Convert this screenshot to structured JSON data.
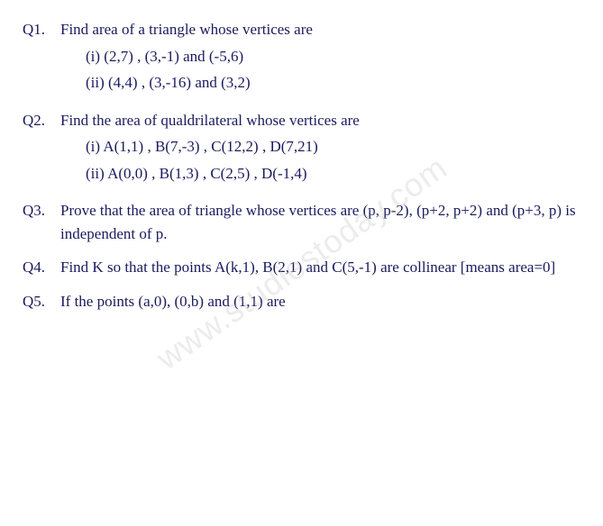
{
  "text_color": "#1a1a5e",
  "background_color": "#ffffff",
  "font_family": "cursive",
  "watermark": "www.studiestoday.com",
  "questions": [
    {
      "num": "Q1.",
      "text": "Find area of a triangle whose vertices are",
      "sub": [
        "(i) (2,7) , (3,-1) and (-5,6)",
        "(ii) (4,4) , (3,-16) and (3,2)"
      ]
    },
    {
      "num": "Q2.",
      "text": "Find the area of qualdrilateral whose vertices are",
      "sub": [
        "(i) A(1,1) , B(7,-3) , C(12,2) , D(7,21)",
        "(ii) A(0,0) , B(1,3) , C(2,5) , D(-1,4)"
      ]
    },
    {
      "num": "Q3.",
      "text": "Prove that the area of triangle whose vertices are (p, p-2), (p+2, p+2) and (p+3, p) is independent of p.",
      "sub": []
    },
    {
      "num": "Q4.",
      "text": "Find K so that the points A(k,1), B(2,1) and C(5,-1) are collinear [means area=0]",
      "sub": []
    },
    {
      "num": "Q5.",
      "text": "If the points (a,0), (0,b) and (1,1) are",
      "sub": []
    }
  ]
}
